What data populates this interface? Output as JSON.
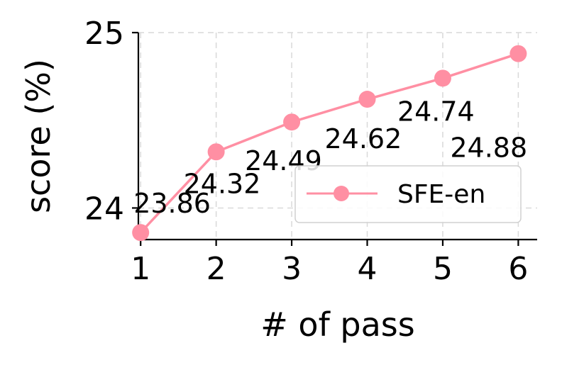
{
  "chart_data": {
    "type": "line",
    "x": [
      1,
      2,
      3,
      4,
      5,
      6
    ],
    "series": [
      {
        "name": "SFE-en",
        "values": [
          23.86,
          24.32,
          24.49,
          24.62,
          24.74,
          24.88
        ],
        "color": "#ff8fa3"
      }
    ],
    "data_labels": [
      "23.86",
      "24.32",
      "24.49",
      "24.62",
      "24.74",
      "24.88"
    ],
    "xlabel": "# of pass",
    "ylabel": "score (%)",
    "xticks": [
      "1",
      "2",
      "3",
      "4",
      "5",
      "6"
    ],
    "yticks": [
      "24",
      "25"
    ],
    "ytick_values": [
      24,
      25
    ],
    "xlim": [
      0.97,
      6.25
    ],
    "ylim": [
      23.82,
      25.0
    ],
    "grid": true,
    "legend_position": "lower-right"
  }
}
